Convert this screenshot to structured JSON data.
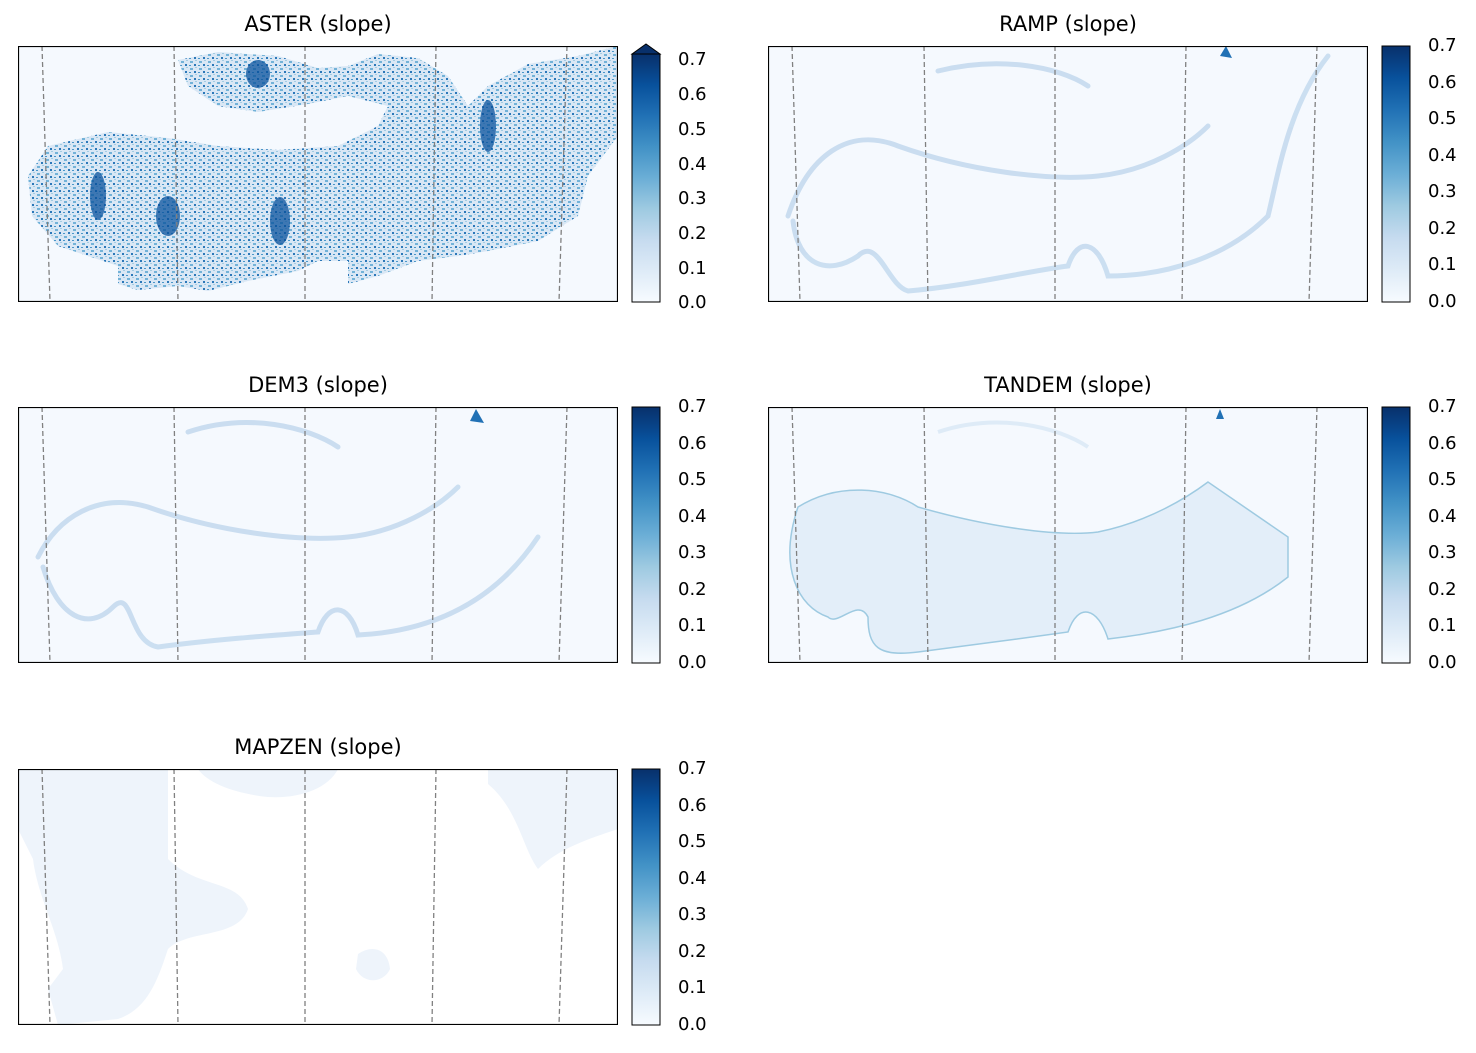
{
  "figure": {
    "panels": [
      {
        "id": "aster",
        "title": "ASTER (slope)",
        "extend_max": true
      },
      {
        "id": "ramp",
        "title": "RAMP (slope)",
        "extend_max": false
      },
      {
        "id": "dem3",
        "title": "DEM3 (slope)",
        "extend_max": false
      },
      {
        "id": "tandem",
        "title": "TANDEM (slope)",
        "extend_max": false
      },
      {
        "id": "mapzen",
        "title": "MAPZEN (slope)",
        "extend_max": false
      }
    ],
    "colorbar": {
      "ticks": [
        "0.0",
        "0.1",
        "0.2",
        "0.3",
        "0.4",
        "0.5",
        "0.6",
        "0.7"
      ],
      "vmin": 0.0,
      "vmax": 0.7,
      "colormap": "Blues",
      "colors": [
        "#f7fbff",
        "#deebf7",
        "#c6dbef",
        "#9ecae1",
        "#6baed6",
        "#4292c6",
        "#2171b5",
        "#08519c",
        "#08306b"
      ]
    },
    "gridline_color": "#808080",
    "gridline_style": "dashed"
  },
  "chart_data": [
    {
      "type": "heatmap",
      "title": "ASTER (slope)",
      "colormap": "Blues",
      "vmin": 0.0,
      "vmax": 0.7,
      "colorbar_extend": "max",
      "axes_ticks": "none"
    },
    {
      "type": "heatmap",
      "title": "RAMP (slope)",
      "colormap": "Blues",
      "vmin": 0.0,
      "vmax": 0.7,
      "axes_ticks": "none"
    },
    {
      "type": "heatmap",
      "title": "DEM3 (slope)",
      "colormap": "Blues",
      "vmin": 0.0,
      "vmax": 0.7,
      "axes_ticks": "none"
    },
    {
      "type": "heatmap",
      "title": "TANDEM (slope)",
      "colormap": "Blues",
      "vmin": 0.0,
      "vmax": 0.7,
      "axes_ticks": "none"
    },
    {
      "type": "heatmap",
      "title": "MAPZEN (slope)",
      "colormap": "Blues",
      "vmin": 0.0,
      "vmax": 0.7,
      "axes_ticks": "none"
    }
  ]
}
